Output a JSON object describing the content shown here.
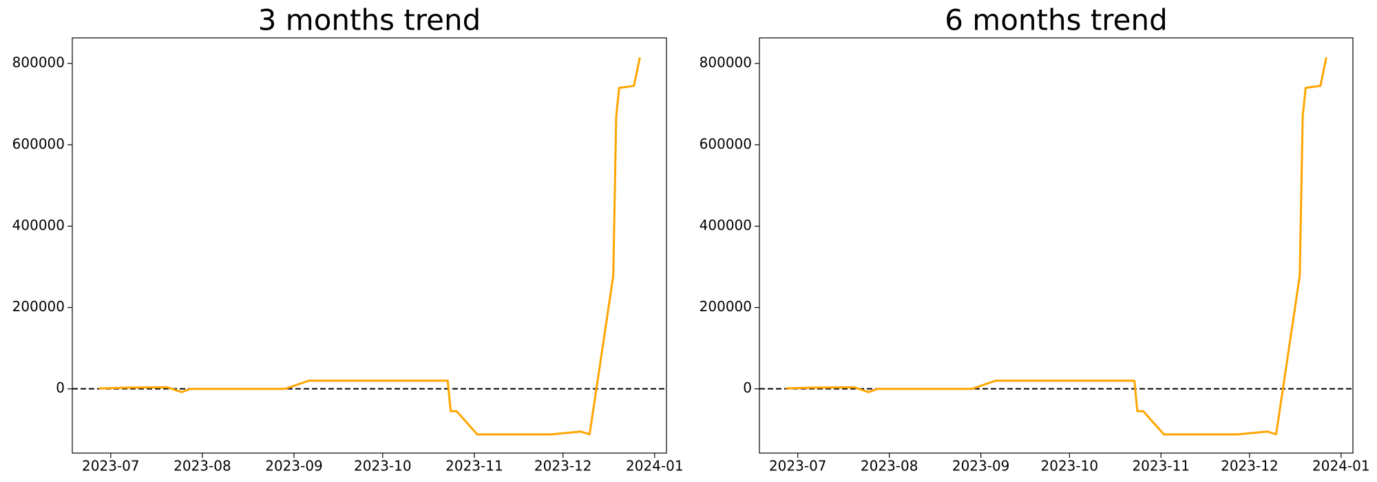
{
  "chart_data": [
    {
      "type": "line",
      "title": "3 months trend",
      "x": [
        "2023-06-27",
        "2023-07-07",
        "2023-07-20",
        "2023-07-25",
        "2023-07-28",
        "2023-08-29",
        "2023-09-06",
        "2023-10-23",
        "2023-10-24",
        "2023-10-26",
        "2023-11-02",
        "2023-11-27",
        "2023-12-07",
        "2023-12-10",
        "2023-12-18",
        "2023-12-19",
        "2023-12-20",
        "2023-12-25",
        "2023-12-27"
      ],
      "series": [
        {
          "color": "#ffa500",
          "values": [
            1000,
            3000,
            4000,
            -8000,
            0,
            0,
            20000,
            20000,
            -55000,
            -55000,
            -112000,
            -112000,
            -105000,
            -112000,
            278000,
            670000,
            740000,
            745000,
            815000
          ]
        }
      ],
      "xlim": [
        "2023-06-18",
        "2024-01-05"
      ],
      "xticks": [
        "2023-07",
        "2023-08",
        "2023-09",
        "2023-10",
        "2023-11",
        "2023-12",
        "2024-01"
      ],
      "ylim": [
        -158000,
        863000
      ],
      "yticks": [
        0,
        200000,
        400000,
        600000,
        800000
      ],
      "hline": 0
    },
    {
      "type": "line",
      "title": "6 months trend",
      "x": [
        "2023-06-27",
        "2023-07-07",
        "2023-07-20",
        "2023-07-25",
        "2023-07-28",
        "2023-08-29",
        "2023-09-06",
        "2023-10-23",
        "2023-10-24",
        "2023-10-26",
        "2023-11-02",
        "2023-11-27",
        "2023-12-07",
        "2023-12-10",
        "2023-12-18",
        "2023-12-19",
        "2023-12-20",
        "2023-12-25",
        "2023-12-27"
      ],
      "series": [
        {
          "color": "#ffa500",
          "values": [
            1000,
            3000,
            4000,
            -8000,
            0,
            0,
            20000,
            20000,
            -55000,
            -55000,
            -112000,
            -112000,
            -105000,
            -112000,
            278000,
            670000,
            740000,
            745000,
            815000
          ]
        }
      ],
      "xlim": [
        "2023-06-18",
        "2024-01-05"
      ],
      "xticks": [
        "2023-07",
        "2023-08",
        "2023-09",
        "2023-10",
        "2023-11",
        "2023-12",
        "2024-01"
      ],
      "ylim": [
        -158000,
        863000
      ],
      "yticks": [
        0,
        200000,
        400000,
        600000,
        800000
      ],
      "hline": 0
    }
  ]
}
